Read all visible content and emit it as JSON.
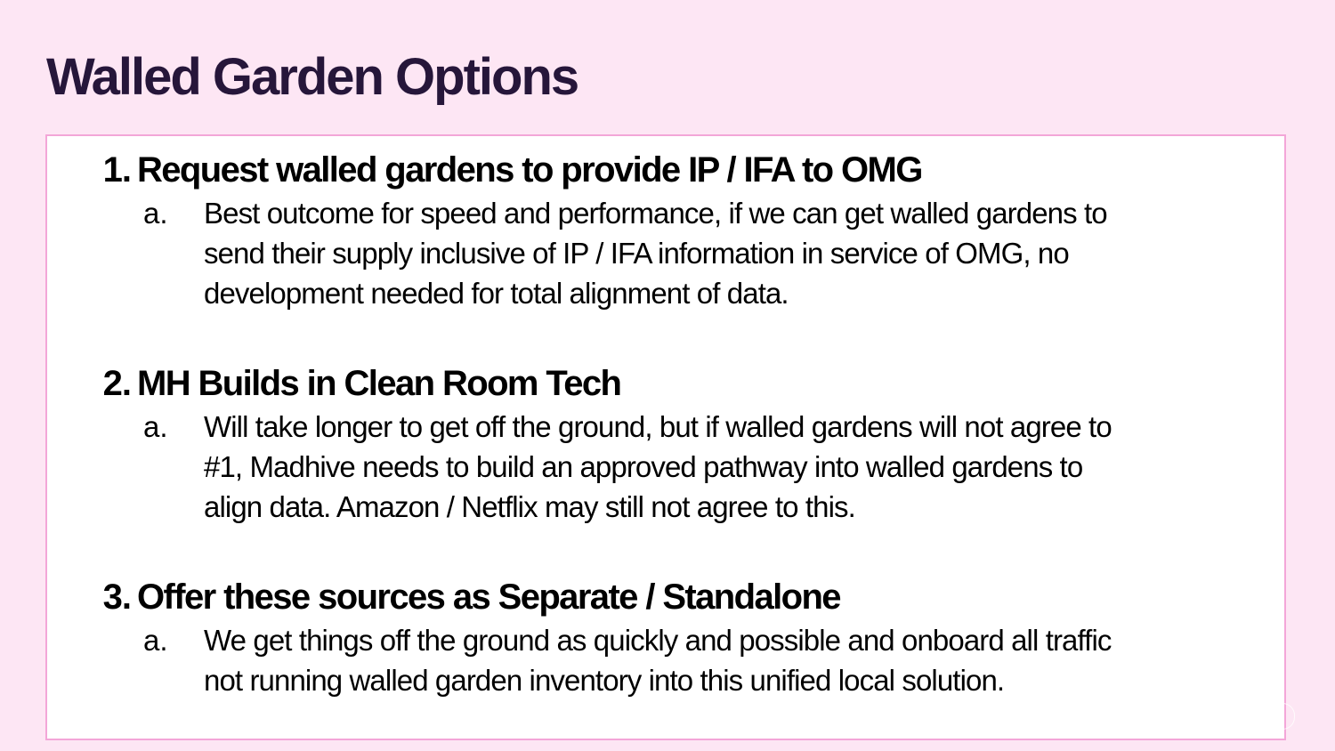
{
  "slide": {
    "title": "Walled Garden Options"
  },
  "items": [
    {
      "number": "1.",
      "heading": "Request walled gardens to provide IP / IFA to OMG",
      "sub_letter": "a.",
      "sub_lines": [
        "Best outcome for speed and performance, if we can get walled gardens to",
        "send their supply inclusive of IP / IFA information in service of OMG, no",
        "development needed for total alignment of data."
      ]
    },
    {
      "number": "2.",
      "heading": "MH Builds in Clean Room Tech",
      "sub_letter": "a.",
      "sub_lines": [
        "Will take longer to get off the ground, but if walled gardens will not agree to",
        "#1, Madhive needs to build an approved pathway into walled gardens to",
        "align data. Amazon / Netflix may still not agree to this."
      ]
    },
    {
      "number": "3.",
      "heading": "Offer these sources as Separate / Standalone",
      "sub_letter": "a.",
      "sub_lines": [
        "We get things off the ground as quickly and possible and onboard all traffic",
        "not running walled garden inventory into this unified local solution."
      ]
    }
  ],
  "colors": {
    "background": "#fde6f4",
    "title": "#26163a",
    "box_border": "#f3a6d8"
  }
}
